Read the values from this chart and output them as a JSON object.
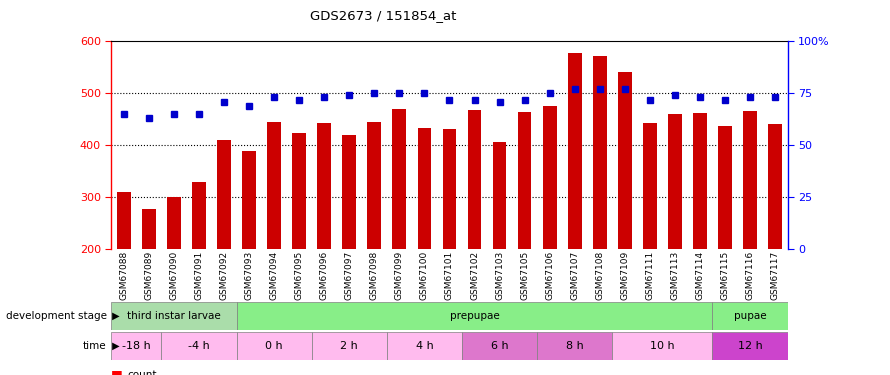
{
  "title": "GDS2673 / 151854_at",
  "samples": [
    "GSM67088",
    "GSM67089",
    "GSM67090",
    "GSM67091",
    "GSM67092",
    "GSM67093",
    "GSM67094",
    "GSM67095",
    "GSM67096",
    "GSM67097",
    "GSM67098",
    "GSM67099",
    "GSM67100",
    "GSM67101",
    "GSM67102",
    "GSM67103",
    "GSM67105",
    "GSM67106",
    "GSM67107",
    "GSM67108",
    "GSM67109",
    "GSM67111",
    "GSM67113",
    "GSM67114",
    "GSM67115",
    "GSM67116",
    "GSM67117"
  ],
  "counts": [
    310,
    278,
    300,
    330,
    410,
    390,
    444,
    424,
    442,
    420,
    444,
    470,
    434,
    432,
    468,
    407,
    464,
    475,
    577,
    572,
    540,
    442,
    460,
    462,
    438,
    466,
    440
  ],
  "percentile": [
    65,
    63,
    65,
    65,
    71,
    69,
    73,
    72,
    73,
    74,
    75,
    75,
    75,
    72,
    72,
    71,
    72,
    75,
    77,
    77,
    77,
    72,
    74,
    73,
    72,
    73,
    73
  ],
  "ylim_left": [
    200,
    600
  ],
  "ylim_right": [
    0,
    100
  ],
  "yticks_left": [
    200,
    300,
    400,
    500,
    600
  ],
  "yticks_right": [
    0,
    25,
    50,
    75,
    100
  ],
  "bar_color": "#cc0000",
  "dot_color": "#0000cc",
  "background_color": "#ffffff",
  "dev_groups": [
    {
      "name": "third instar larvae",
      "start": 0,
      "end": 5,
      "color": "#aaddaa"
    },
    {
      "name": "prepupae",
      "start": 5,
      "end": 24,
      "color": "#88ee88"
    },
    {
      "name": "pupae",
      "start": 24,
      "end": 27,
      "color": "#88ee88"
    }
  ],
  "time_groups": [
    {
      "name": "-18 h",
      "start": 0,
      "end": 2,
      "color": "#ffbbee"
    },
    {
      "name": "-4 h",
      "start": 2,
      "end": 5,
      "color": "#ffbbee"
    },
    {
      "name": "0 h",
      "start": 5,
      "end": 8,
      "color": "#ffbbee"
    },
    {
      "name": "2 h",
      "start": 8,
      "end": 11,
      "color": "#ffbbee"
    },
    {
      "name": "4 h",
      "start": 11,
      "end": 14,
      "color": "#ffbbee"
    },
    {
      "name": "6 h",
      "start": 14,
      "end": 17,
      "color": "#dd77cc"
    },
    {
      "name": "8 h",
      "start": 17,
      "end": 20,
      "color": "#dd77cc"
    },
    {
      "name": "10 h",
      "start": 20,
      "end": 24,
      "color": "#ffbbee"
    },
    {
      "name": "12 h",
      "start": 24,
      "end": 27,
      "color": "#cc44cc"
    }
  ]
}
